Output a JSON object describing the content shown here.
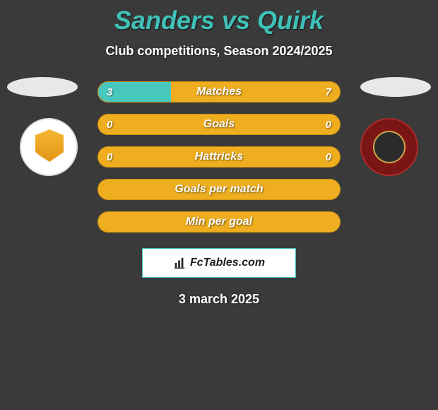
{
  "header": {
    "title": "Sanders vs Quirk",
    "subtitle": "Club competitions, Season 2024/2025"
  },
  "bars": [
    {
      "label": "Matches",
      "left_val": "3",
      "right_val": "7",
      "left_pct": 30
    },
    {
      "label": "Goals",
      "left_val": "0",
      "right_val": "0",
      "left_pct": 0
    },
    {
      "label": "Hattricks",
      "left_val": "0",
      "right_val": "0",
      "left_pct": 0
    },
    {
      "label": "Goals per match",
      "left_val": "",
      "right_val": "",
      "left_pct": 0
    },
    {
      "label": "Min per goal",
      "left_val": "",
      "right_val": "",
      "left_pct": 0
    }
  ],
  "footer": {
    "brand": "FcTables.com",
    "date": "3 march 2025"
  },
  "colors": {
    "accent_teal": "#48c7bd",
    "accent_amber": "#efae1f",
    "title_teal": "#3fc1b8",
    "background": "#3a3a3a"
  }
}
